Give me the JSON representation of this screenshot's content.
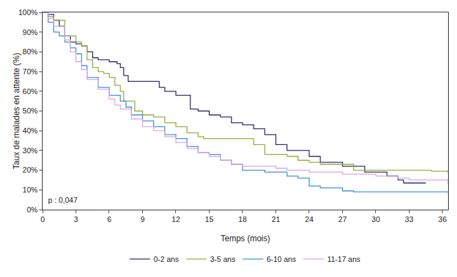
{
  "chart_data": {
    "type": "line",
    "line_style": "step",
    "xlabel": "Temps (mois)",
    "ylabel": "Taux de malades en attente (%)",
    "annotation": "p : 0,047",
    "xlim": [
      0,
      36.5
    ],
    "xticks": [
      0,
      3,
      6,
      9,
      12,
      15,
      18,
      21,
      24,
      27,
      30,
      33,
      36
    ],
    "ylim": [
      0,
      100
    ],
    "yticks": [
      {
        "value": 0,
        "label": "0%"
      },
      {
        "value": 10,
        "label": "10%"
      },
      {
        "value": 20,
        "label": "20%"
      },
      {
        "value": 30,
        "label": "30%"
      },
      {
        "value": 40,
        "label": "40%"
      },
      {
        "value": 50,
        "label": "50%"
      },
      {
        "value": 60,
        "label": "60%"
      },
      {
        "value": 70,
        "label": "70%"
      },
      {
        "value": 80,
        "label": "80%"
      },
      {
        "value": 90,
        "label": "90%"
      },
      {
        "value": 100,
        "label": "100%"
      }
    ],
    "grid": false,
    "legend": "bottom",
    "series": [
      {
        "name": "0-2 ans",
        "color": "#2b2b6b",
        "x": [
          0,
          0.5,
          1,
          1.5,
          2,
          2.5,
          3,
          3.5,
          4,
          4.5,
          5,
          6,
          6.7,
          7,
          7.3,
          7.7,
          8,
          10,
          10.5,
          11,
          12,
          13,
          13.3,
          14,
          15,
          16,
          17,
          18,
          19,
          20,
          21,
          22,
          23,
          24,
          25,
          27,
          29,
          31,
          32,
          32.5,
          34,
          34.5
        ],
        "values": [
          100,
          99,
          96,
          93,
          88,
          85,
          84,
          83,
          80,
          77,
          76,
          75,
          74,
          72,
          68,
          65,
          65,
          65,
          62,
          60,
          58,
          58,
          51,
          50,
          48,
          47,
          44,
          43,
          41,
          38,
          33,
          30,
          30,
          27,
          24,
          22,
          19,
          17,
          15,
          13.5,
          13.5,
          13.5
        ]
      },
      {
        "name": "3-5 ans",
        "color": "#8fae3c",
        "x": [
          0,
          0.5,
          1,
          2,
          3,
          3.5,
          4,
          4.5,
          5,
          5.5,
          6,
          6.5,
          7,
          7.3,
          8,
          8.3,
          9,
          10,
          11,
          12,
          13,
          14,
          14.5,
          18,
          19,
          20,
          21,
          22,
          23,
          24,
          25,
          27,
          28,
          33,
          35,
          36.5
        ],
        "values": [
          100,
          98,
          96,
          88,
          85,
          83,
          76,
          72,
          70,
          69,
          67,
          63,
          60,
          55,
          55,
          50,
          48,
          47,
          44,
          42,
          39,
          37,
          36,
          36,
          33,
          28,
          28,
          27,
          25,
          24,
          23,
          23,
          20,
          20,
          19.5,
          18.5
        ]
      },
      {
        "name": "6-10 ans",
        "color": "#3b8fd9",
        "x": [
          0,
          0.5,
          1,
          1.5,
          2,
          2.5,
          3,
          3.5,
          4,
          5,
          6,
          7,
          7.5,
          8,
          9,
          10,
          11,
          12,
          13,
          14,
          15,
          16,
          17,
          18,
          19,
          20,
          22,
          23,
          24,
          25,
          27,
          28,
          36.5
        ],
        "values": [
          100,
          95,
          90,
          88,
          85,
          82,
          79,
          73,
          67,
          62,
          58,
          55,
          52,
          48,
          45,
          42,
          38,
          36,
          32,
          29,
          28,
          25,
          23,
          20,
          20,
          19,
          17,
          16,
          12,
          11,
          9.5,
          9,
          8.5
        ]
      },
      {
        "name": "11-17 ans",
        "color": "#d9a5e0",
        "x": [
          0,
          0.5,
          1,
          2,
          2.5,
          3,
          3.5,
          4,
          5,
          6,
          6.5,
          7,
          8,
          9,
          10,
          11,
          12,
          13,
          14,
          15,
          16,
          17,
          18,
          20,
          21,
          22,
          24,
          27,
          30,
          32,
          33,
          36.5
        ],
        "values": [
          100,
          97,
          93,
          86,
          80,
          75,
          71,
          66,
          61,
          56,
          53,
          51,
          46,
          42,
          40,
          37,
          34,
          31,
          29,
          27,
          25,
          23,
          22,
          22,
          21,
          20,
          19,
          18,
          17,
          16,
          15,
          13
        ]
      }
    ]
  }
}
